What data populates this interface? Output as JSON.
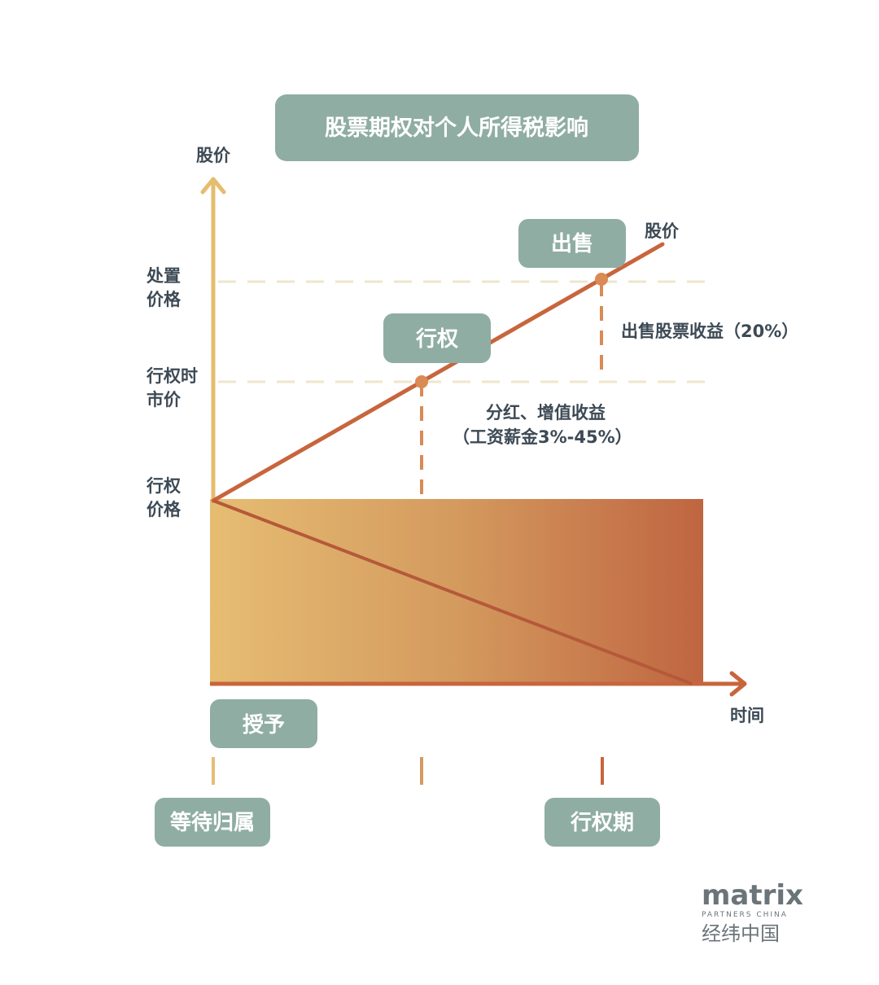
{
  "title": "股票期权对个人所得税影响",
  "axes": {
    "y_label": "股价",
    "x_label": "时间"
  },
  "y_levels": {
    "disposal_price": [
      "处置",
      "价格"
    ],
    "market_price_at_exercise": [
      "行权时",
      "市价"
    ],
    "exercise_price": [
      "行权",
      "价格"
    ]
  },
  "line_label": "股价",
  "events": {
    "sell": "出售",
    "exercise": "行权",
    "grant": "授予"
  },
  "annotations": {
    "sale_gain": "出售股票收益（20%）",
    "exercise_gain_line1": "分红、增值收益",
    "exercise_gain_line2": "（工资薪金3%-45%）"
  },
  "periods": {
    "vesting": "等待归属",
    "exercise_period": "行权期"
  },
  "logo": {
    "word": "matrix",
    "sub": "PARTNERS CHINA",
    "cn": "经纬中国"
  },
  "colors": {
    "pill": "#8fada3",
    "axis_y": "#e5bd6e",
    "line": "#c8653c",
    "gradient_start": "#e6bd73",
    "gradient_end": "#bf6541",
    "guide": "#efe6c9"
  }
}
